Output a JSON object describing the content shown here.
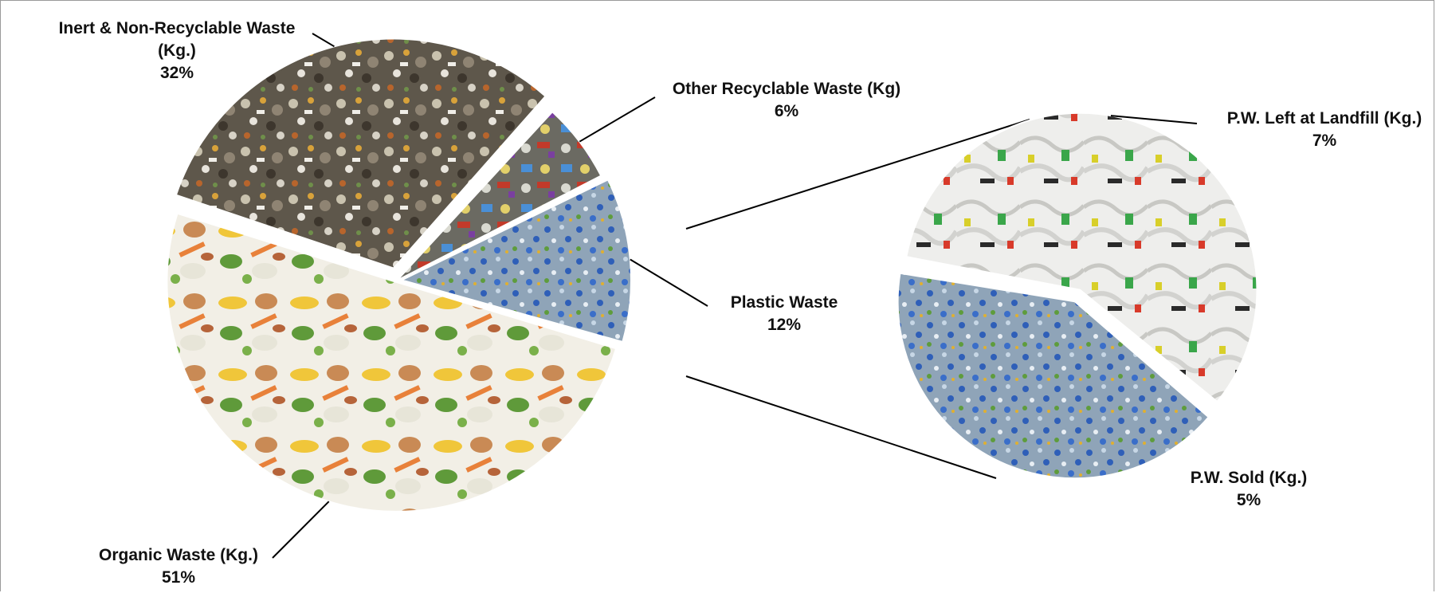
{
  "chart_data": {
    "type": "pie",
    "subtype": "pie-of-pie",
    "title": "",
    "main_pie": [
      {
        "name": "Inert & Non-Recyclable Waste (Kg.)",
        "label_lines": [
          "Inert & Non-Recyclable Waste",
          "(Kg.)"
        ],
        "value": 32,
        "percent_label": "32%",
        "fill_style": "mixed-waste-photo"
      },
      {
        "name": "Other Recyclable Waste (Kg)",
        "label_lines": [
          "Other Recyclable Waste (Kg)"
        ],
        "value": 6,
        "percent_label": "6%",
        "fill_style": "recyclables-photo"
      },
      {
        "name": "Plastic Waste",
        "label_lines": [
          "Plastic Waste"
        ],
        "value": 12,
        "percent_label": "12%",
        "fill_style": "plastic-bottles-photo"
      },
      {
        "name": "Organic Waste (Kg.)",
        "label_lines": [
          "Organic Waste (Kg.)"
        ],
        "value": 51,
        "percent_label": "51%",
        "fill_style": "food-scraps-photo"
      }
    ],
    "secondary_pie": {
      "breakdown_of": "Plastic Waste",
      "slices": [
        {
          "name": "P.W. Left at Landfill (Kg.)",
          "label_lines": [
            "P.W. Left at Landfill (Kg.)"
          ],
          "value": 7,
          "percent_label": "7%",
          "fill_style": "plastic-bags-photo"
        },
        {
          "name": "P.W. Sold (Kg.)",
          "label_lines": [
            "P.W. Sold (Kg.)"
          ],
          "value": 5,
          "percent_label": "5%",
          "fill_style": "plastic-bottles-photo"
        }
      ]
    },
    "legend": "none",
    "data_labels": "outside-with-leader-lines"
  }
}
